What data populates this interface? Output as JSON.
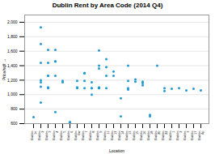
{
  "chart_data": {
    "type": "scatter",
    "title": "Dublin Rent by Area Code (2014 Q4)",
    "xlabel": "Location",
    "ylabel": "Price/sqft",
    "color": "#1f9ad6",
    "categories": [
      "Dublin\n1o",
      "Dublin\n2",
      "Dublin\n3",
      "Dublin\n4",
      "Dublin\n5",
      "Dublin\n6",
      "Dublin\n6w",
      "Dublin\n7",
      "Dublin\n8",
      "Dublin\n9",
      "Dublin\n11",
      "Dublin\n12",
      "Dublin\n14",
      "Dublin\n13",
      "Dublin\n15",
      "Dublin\n16",
      "Dublin\n18",
      "Dublin\n20",
      "Dublin\n22",
      "Dublin\n1",
      "Dublin\n2",
      "Dublin\n3",
      "Dublin\n17",
      "Dublin\n4p"
    ],
    "values": [
      [
        690
      ],
      [
        1930,
        1700,
        1440,
        1200,
        1170,
        1110,
        890
      ],
      [
        1620,
        1440,
        1260,
        1260,
        1100,
        1090
      ],
      [
        1620,
        1460,
        1460,
        1260,
        760
      ],
      [
        1190,
        1170
      ],
      [
        620,
        620
      ],
      [
        1190,
        1100,
        1090
      ],
      [
        1300,
        1295,
        1190,
        1090
      ],
      [
        1170,
        1090,
        1090,
        1000
      ],
      [
        1610,
        1400,
        1360,
        1100,
        1090,
        1090
      ],
      [
        1490,
        1380,
        1260,
        1090
      ],
      [
        1320,
        1260
      ],
      [
        950,
        700
      ],
      [
        1400,
        1190,
        1090,
        1070
      ],
      [
        1210,
        1180
      ],
      [
        1180,
        1160,
        1130
      ],
      [
        720,
        700
      ],
      [
        1400
      ],
      [
        1090,
        1050
      ],
      [
        1080
      ],
      [
        1090
      ],
      [
        1060
      ],
      [
        1080
      ],
      [
        1060
      ]
    ],
    "ylim": [
      600,
      2100
    ],
    "yticks": [
      600,
      800,
      1000,
      1200,
      1400,
      1600,
      1800,
      2000
    ],
    "grid": true
  }
}
